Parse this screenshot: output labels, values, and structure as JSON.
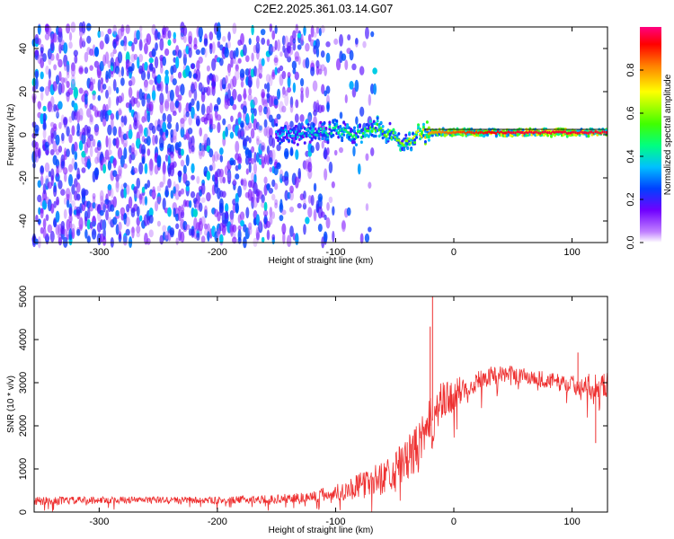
{
  "title": "C2E2.2025.361.03.14.G07",
  "chart_data": [
    {
      "type": "heatmap",
      "name": "spectrogram",
      "xlabel": "Height of straight line (km)",
      "ylabel": "Frequency (Hz)",
      "xlim": [
        -355,
        130
      ],
      "ylim": [
        -50,
        50
      ],
      "xticks": [
        -300,
        -200,
        -100,
        0,
        100
      ],
      "yticks": [
        -40,
        -20,
        0,
        20,
        40
      ],
      "colorbar": {
        "label": "Normalized spectral amplitude",
        "range": [
          0,
          1
        ],
        "ticks": [
          "0.0",
          "0.2",
          "0.4",
          "0.6",
          "0.8"
        ]
      },
      "description_points": {
        "noise_region_x": [
          -355,
          -105
        ],
        "noise_amplitude": 0.25,
        "signal_track": {
          "x": [
            -150,
            -120,
            -100,
            -80,
            -65,
            -50,
            -40,
            -30,
            -20,
            0,
            20,
            50,
            100,
            125
          ],
          "freq": [
            0,
            1,
            2,
            0,
            3,
            -1,
            -4,
            0,
            1,
            1,
            1,
            1,
            1,
            1
          ],
          "amplitude": [
            0.35,
            0.4,
            0.45,
            0.5,
            0.55,
            0.6,
            0.6,
            0.7,
            0.8,
            0.85,
            0.9,
            0.95,
            0.95,
            0.95
          ]
        }
      }
    },
    {
      "type": "line",
      "name": "snr",
      "xlabel": "Height of straight line (km)",
      "ylabel": "SNR (10 * v/v)",
      "xlim": [
        -355,
        130
      ],
      "ylim": [
        0,
        5000
      ],
      "xticks": [
        -300,
        -200,
        -100,
        0,
        100
      ],
      "yticks": [
        0,
        1000,
        2000,
        3000,
        4000,
        5000
      ],
      "series": [
        {
          "name": "SNR",
          "color": "#ee3030",
          "x": [
            -355,
            -300,
            -250,
            -200,
            -150,
            -120,
            -100,
            -80,
            -60,
            -50,
            -40,
            -30,
            -25,
            -20,
            -15,
            -10,
            0,
            10,
            20,
            30,
            40,
            50,
            60,
            70,
            80,
            90,
            100,
            110,
            120,
            130
          ],
          "y": [
            250,
            280,
            280,
            270,
            300,
            350,
            450,
            600,
            800,
            1000,
            1200,
            1500,
            1700,
            2000,
            2300,
            2500,
            2700,
            2900,
            3050,
            3150,
            3200,
            3200,
            3150,
            3100,
            3050,
            3000,
            2950,
            2950,
            2950,
            2950
          ],
          "noise_band": [
            100,
            80,
            80,
            80,
            100,
            150,
            200,
            300,
            400,
            450,
            500,
            600,
            600,
            650,
            700,
            500,
            400,
            300,
            250,
            220,
            200,
            200,
            200,
            200,
            200,
            200,
            220,
            250,
            280,
            300
          ],
          "spikes": [
            {
              "x": -18,
              "y": 5000
            },
            {
              "x": -20,
              "y": 4300
            },
            {
              "x": 105,
              "y": 3700
            },
            {
              "x": 120,
              "y": 1600
            }
          ]
        }
      ]
    }
  ]
}
